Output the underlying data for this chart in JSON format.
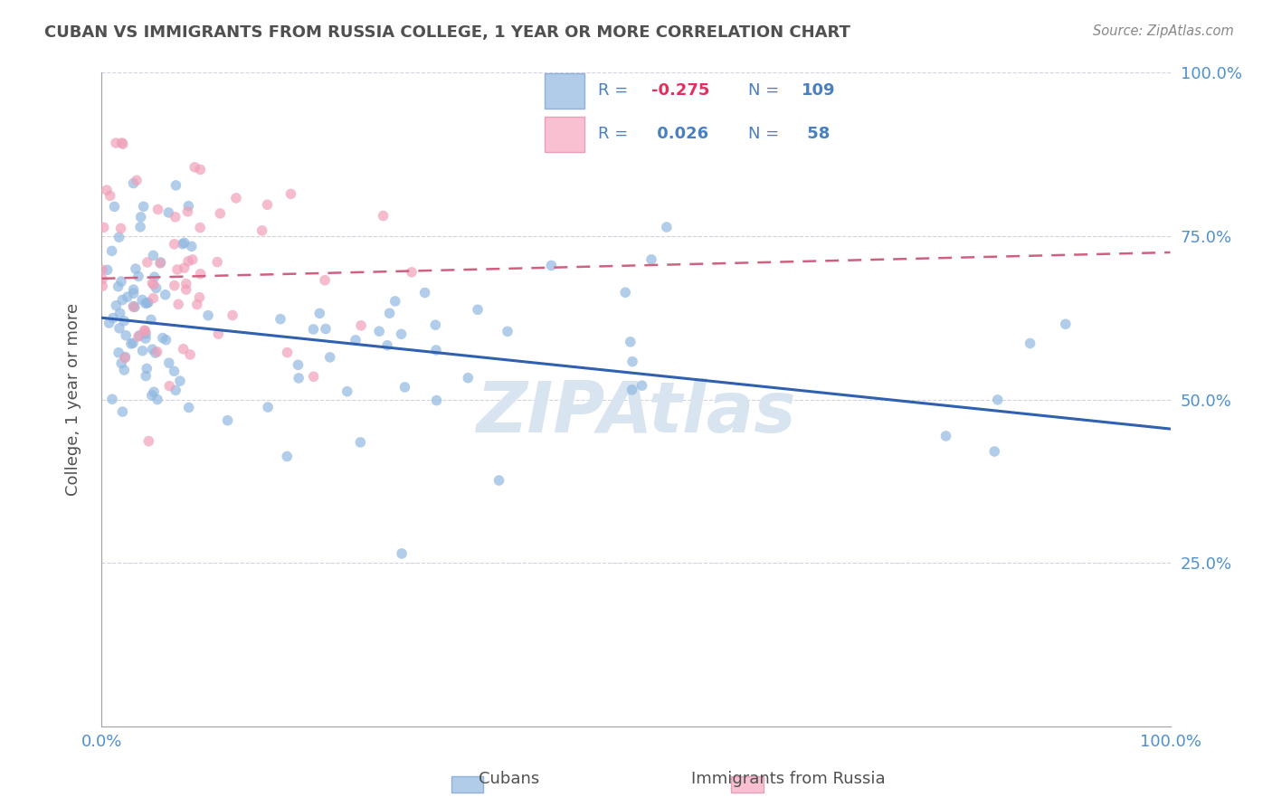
{
  "title": "CUBAN VS IMMIGRANTS FROM RUSSIA COLLEGE, 1 YEAR OR MORE CORRELATION CHART",
  "source_text": "Source: ZipAtlas.com",
  "ylabel": "College, 1 year or more",
  "xlim": [
    0.0,
    1.0
  ],
  "ylim": [
    0.0,
    1.0
  ],
  "blue_R": -0.275,
  "blue_N": 109,
  "pink_R": 0.026,
  "pink_N": 58,
  "blue_scatter_color": "#90b8e0",
  "pink_scatter_color": "#f0a0b8",
  "blue_line_color": "#3060b0",
  "pink_line_color": "#d06080",
  "blue_legend_color": "#b0cce8",
  "pink_legend_color": "#f8c0d0",
  "axis_label_color": "#5090d0",
  "title_color": "#505050",
  "grid_color": "#c8c8d8",
  "watermark_color": "#d8e4f0",
  "background_color": "#ffffff",
  "blue_line_y0": 0.625,
  "blue_line_y1": 0.455,
  "pink_line_y0": 0.685,
  "pink_line_y1": 0.725,
  "ytick_positions": [
    0.25,
    0.5,
    0.75,
    1.0
  ],
  "ytick_labels": [
    "25.0%",
    "50.0%",
    "75.0%",
    "100.0%"
  ],
  "xtick_positions": [
    0.0,
    1.0
  ],
  "xtick_labels": [
    "0.0%",
    "100.0%"
  ],
  "legend_text_color": "#4a80c0",
  "legend_r1_color": "#e03060",
  "watermark": "ZIPAtlas"
}
